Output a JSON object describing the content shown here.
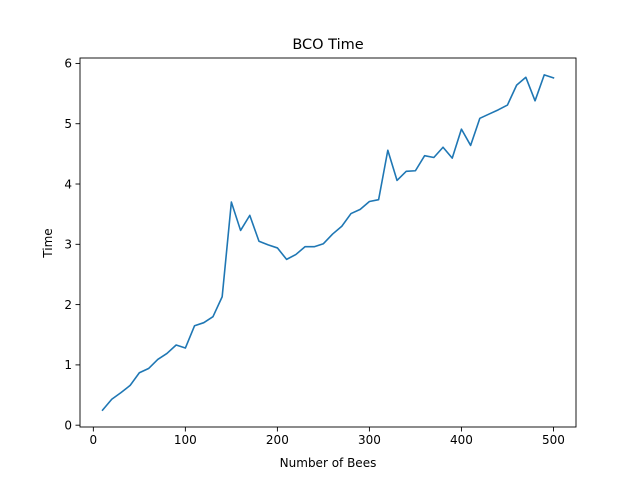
{
  "chart_data": {
    "type": "line",
    "title": "BCO Time",
    "xlabel": "Number of Bees",
    "ylabel": "Time",
    "xlim": [
      -14.5,
      524.5
    ],
    "ylim": [
      -0.03,
      6.09
    ],
    "xticks": [
      0,
      100,
      200,
      300,
      400,
      500
    ],
    "yticks": [
      0,
      1,
      2,
      3,
      4,
      5,
      6
    ],
    "grid": false,
    "series": [
      {
        "color": "#1f77b4",
        "x": [
          10,
          20,
          30,
          40,
          50,
          60,
          70,
          80,
          90,
          100,
          110,
          120,
          130,
          140,
          150,
          160,
          170,
          180,
          190,
          200,
          210,
          220,
          230,
          240,
          250,
          260,
          270,
          280,
          290,
          300,
          310,
          320,
          330,
          340,
          350,
          360,
          370,
          380,
          390,
          400,
          410,
          420,
          430,
          440,
          450,
          460,
          470,
          480,
          490,
          500
        ],
        "y": [
          0.25,
          0.43,
          0.54,
          0.66,
          0.87,
          0.94,
          1.09,
          1.19,
          1.33,
          1.28,
          1.65,
          1.7,
          1.8,
          2.13,
          3.7,
          3.23,
          3.48,
          3.05,
          2.99,
          2.94,
          2.75,
          2.83,
          2.96,
          2.96,
          3.01,
          3.17,
          3.3,
          3.51,
          3.58,
          3.71,
          3.74,
          4.56,
          4.06,
          4.21,
          4.22,
          4.47,
          4.44,
          4.61,
          4.43,
          4.91,
          4.64,
          5.09,
          5.16,
          5.23,
          5.31,
          5.64,
          5.77,
          5.38,
          5.81,
          5.76
        ]
      }
    ]
  }
}
